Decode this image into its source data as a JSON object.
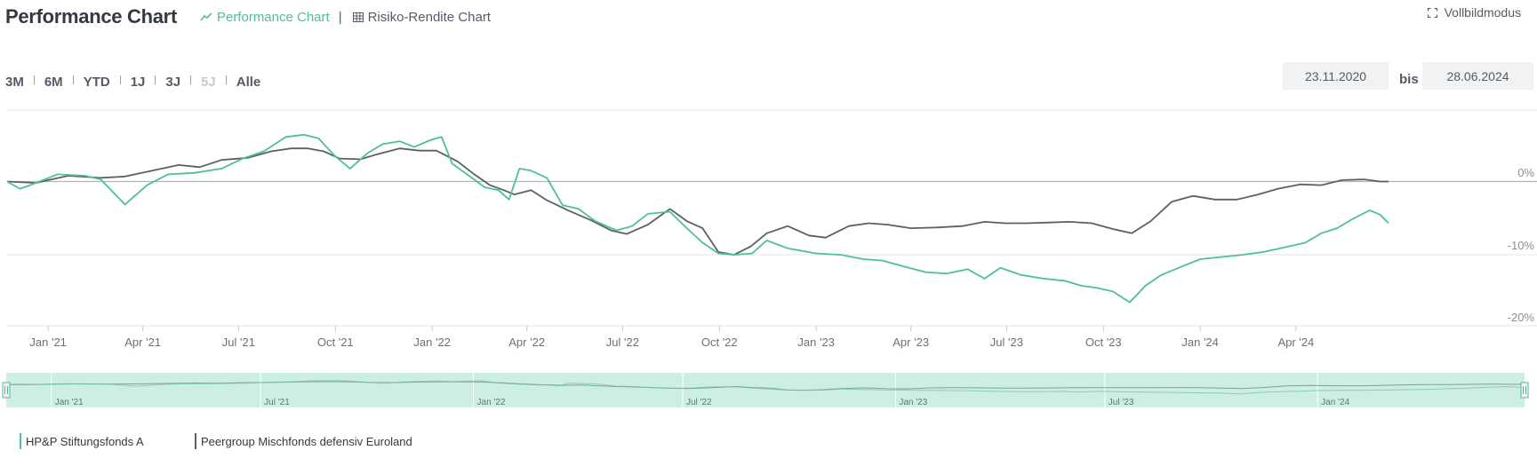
{
  "header": {
    "title": "Performance Chart",
    "tab_performance": "Performance Chart",
    "separator": "|",
    "tab_risk": "Risiko-Rendite Chart",
    "fullscreen": "Vollbildmodus"
  },
  "ranges": [
    {
      "label": "3M",
      "enabled": true
    },
    {
      "label": "6M",
      "enabled": true
    },
    {
      "label": "YTD",
      "enabled": true
    },
    {
      "label": "1J",
      "enabled": true
    },
    {
      "label": "3J",
      "enabled": true
    },
    {
      "label": "5J",
      "enabled": false
    },
    {
      "label": "Alle",
      "enabled": true
    }
  ],
  "date_from": "23.11.2020",
  "date_to": "28.06.2024",
  "date_separator": "bis",
  "colors": {
    "fund": "#4dbf9b",
    "peer": "#5b5f69",
    "navigator_fill": "#cceee3",
    "grid": "#e6e6e6",
    "zero_line": "#b4b4b4"
  },
  "chart_data": {
    "type": "line",
    "y_ticks": [
      "0%",
      "-10%",
      "-20%"
    ],
    "ylim": [
      -20,
      9
    ],
    "xlim": [
      "2020-11-23",
      "2024-06-28"
    ],
    "x_ticks": [
      "Jan '21",
      "Apr '21",
      "Jul '21",
      "Oct '21",
      "Jan '22",
      "Apr '22",
      "Jul '22",
      "Oct '22",
      "Jan '23",
      "Apr '23",
      "Jul '23",
      "Oct '23",
      "Jan '24",
      "Apr '24"
    ],
    "navigator_ticks": [
      "Jan '21",
      "Jul '21",
      "Jan '22",
      "Jul '22",
      "Jan '23",
      "Jul '23",
      "Jan '24"
    ],
    "series": [
      {
        "name": "HP&P Stiftungsfonds A",
        "color": "#4dbf9b",
        "x": [
          "2020-11-23",
          "2020-12-05",
          "2020-12-15",
          "2021-01-10",
          "2021-02-05",
          "2021-02-20",
          "2021-03-15",
          "2021-04-05",
          "2021-04-25",
          "2021-05-20",
          "2021-06-15",
          "2021-07-05",
          "2021-07-25",
          "2021-08-15",
          "2021-09-01",
          "2021-09-15",
          "2021-10-01",
          "2021-10-15",
          "2021-11-01",
          "2021-11-15",
          "2021-12-01",
          "2021-12-15",
          "2021-12-31",
          "2022-01-10",
          "2022-01-20",
          "2022-02-05",
          "2022-02-20",
          "2022-03-05",
          "2022-03-15",
          "2022-03-25",
          "2022-04-05",
          "2022-04-20",
          "2022-05-05",
          "2022-05-20",
          "2022-06-05",
          "2022-06-25",
          "2022-07-10",
          "2022-07-25",
          "2022-08-15",
          "2022-08-31",
          "2022-09-15",
          "2022-09-30",
          "2022-10-15",
          "2022-11-01",
          "2022-11-15",
          "2022-12-05",
          "2023-01-01",
          "2023-01-25",
          "2023-02-15",
          "2023-03-05",
          "2023-03-25",
          "2023-04-15",
          "2023-05-05",
          "2023-05-25",
          "2023-06-10",
          "2023-06-25",
          "2023-07-15",
          "2023-08-05",
          "2023-08-25",
          "2023-09-10",
          "2023-09-25",
          "2023-10-10",
          "2023-10-26",
          "2023-11-10",
          "2023-11-25",
          "2023-12-15",
          "2024-01-01",
          "2024-01-20",
          "2024-02-10",
          "2024-03-01",
          "2024-03-20",
          "2024-04-10",
          "2024-04-25",
          "2024-05-10",
          "2024-05-25",
          "2024-06-10",
          "2024-06-20",
          "2024-06-28"
        ],
        "values": [
          0,
          -1.0,
          -0.5,
          1.0,
          0.8,
          0.3,
          -3.2,
          -0.5,
          1.0,
          1.2,
          1.8,
          3.2,
          4.2,
          6.2,
          6.5,
          6.0,
          3.5,
          1.8,
          4.0,
          5.2,
          5.6,
          4.8,
          5.8,
          6.2,
          2.5,
          0.8,
          -0.8,
          -1.2,
          -2.5,
          1.8,
          1.5,
          0.5,
          -3.3,
          -3.8,
          -5.5,
          -6.8,
          -6.2,
          -4.5,
          -4.2,
          -6.5,
          -8.5,
          -10.0,
          -10.2,
          -10.0,
          -8.2,
          -9.3,
          -10.0,
          -10.2,
          -10.8,
          -11.0,
          -11.8,
          -12.6,
          -12.8,
          -12.2,
          -13.5,
          -12.0,
          -13.0,
          -13.5,
          -13.8,
          -14.5,
          -14.8,
          -15.3,
          -16.8,
          -14.5,
          -13.0,
          -11.8,
          -10.8,
          -10.5,
          -10.2,
          -9.8,
          -9.2,
          -8.5,
          -7.2,
          -6.5,
          -5.2,
          -4.0,
          -4.6,
          -5.8
        ]
      },
      {
        "name": "Peergroup Mischfonds defensiv Euroland",
        "color": "#5b5f69",
        "x": [
          "2020-11-23",
          "2020-12-20",
          "2021-01-20",
          "2021-02-20",
          "2021-03-15",
          "2021-04-10",
          "2021-05-05",
          "2021-05-25",
          "2021-06-15",
          "2021-07-10",
          "2021-08-01",
          "2021-08-20",
          "2021-09-05",
          "2021-09-20",
          "2021-10-05",
          "2021-10-25",
          "2021-11-10",
          "2021-12-01",
          "2021-12-20",
          "2022-01-05",
          "2022-01-25",
          "2022-02-10",
          "2022-02-25",
          "2022-03-10",
          "2022-03-20",
          "2022-04-05",
          "2022-04-20",
          "2022-05-10",
          "2022-06-01",
          "2022-06-20",
          "2022-07-05",
          "2022-07-25",
          "2022-08-15",
          "2022-08-31",
          "2022-09-15",
          "2022-09-30",
          "2022-10-15",
          "2022-10-31",
          "2022-11-15",
          "2022-12-05",
          "2022-12-25",
          "2023-01-10",
          "2023-02-01",
          "2023-02-20",
          "2023-03-10",
          "2023-04-01",
          "2023-04-25",
          "2023-05-20",
          "2023-06-10",
          "2023-06-30",
          "2023-07-20",
          "2023-08-10",
          "2023-08-30",
          "2023-09-20",
          "2023-10-10",
          "2023-10-28",
          "2023-11-15",
          "2023-12-05",
          "2023-12-25",
          "2024-01-15",
          "2024-02-05",
          "2024-02-25",
          "2024-03-15",
          "2024-04-05",
          "2024-04-25",
          "2024-05-15",
          "2024-06-05",
          "2024-06-20",
          "2024-06-28"
        ],
        "values": [
          0,
          -0.2,
          0.8,
          0.5,
          0.7,
          1.5,
          2.3,
          2.0,
          3.0,
          3.3,
          4.2,
          4.6,
          4.6,
          4.2,
          3.2,
          3.1,
          3.8,
          4.6,
          4.3,
          4.3,
          2.8,
          1.0,
          -0.5,
          -1.2,
          -1.8,
          -1.2,
          -2.6,
          -4.0,
          -5.4,
          -6.8,
          -7.3,
          -6.0,
          -3.8,
          -5.5,
          -6.5,
          -9.8,
          -10.2,
          -9.0,
          -7.2,
          -6.2,
          -7.5,
          -7.8,
          -6.2,
          -5.8,
          -6.0,
          -6.5,
          -6.4,
          -6.2,
          -5.6,
          -5.8,
          -5.8,
          -5.7,
          -5.6,
          -5.8,
          -6.6,
          -7.2,
          -5.5,
          -2.8,
          -2.0,
          -2.5,
          -2.5,
          -1.8,
          -1.0,
          -0.4,
          -0.5,
          0.2,
          0.3,
          0.0,
          0.0
        ]
      }
    ]
  },
  "legend": [
    {
      "label": "HP&P Stiftungsfonds A",
      "color": "#4dbf9b"
    },
    {
      "label": "Peergroup Mischfonds defensiv Euroland",
      "color": "#5b5f69"
    }
  ]
}
